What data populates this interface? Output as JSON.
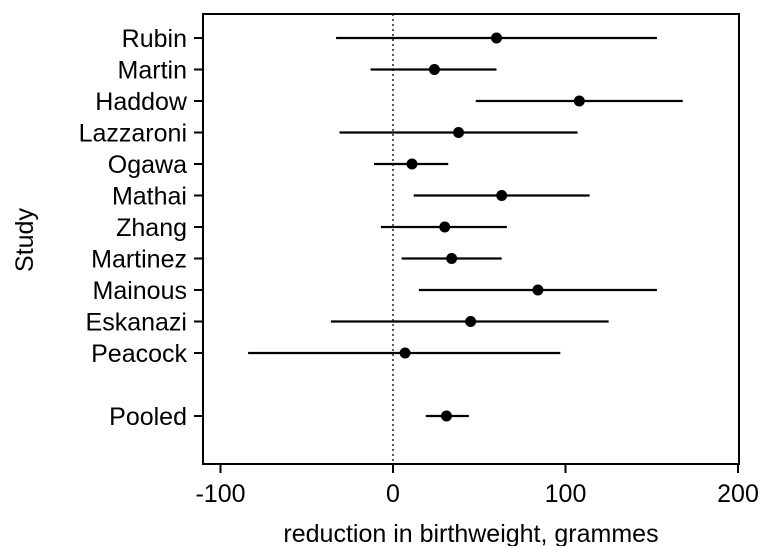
{
  "chart_data": {
    "type": "scatter",
    "subtype": "forest-plot",
    "title": "",
    "xlabel": "reduction in birthweight, grammes",
    "ylabel": "Study",
    "xlim": [
      -110,
      200
    ],
    "xticks": [
      -100,
      0,
      100,
      200
    ],
    "xtick_labels": [
      "-100",
      "0",
      "100",
      "200"
    ],
    "reference_line": {
      "x": 0,
      "style": "dotted"
    },
    "grid": false,
    "legend": "none",
    "studies": [
      {
        "label": "Rubin",
        "estimate": 60,
        "lower": -33,
        "upper": 153
      },
      {
        "label": "Martin",
        "estimate": 24,
        "lower": -13,
        "upper": 60
      },
      {
        "label": "Haddow",
        "estimate": 108,
        "lower": 48,
        "upper": 168
      },
      {
        "label": "Lazzaroni",
        "estimate": 38,
        "lower": -31,
        "upper": 107
      },
      {
        "label": "Ogawa",
        "estimate": 11,
        "lower": -11,
        "upper": 32
      },
      {
        "label": "Mathai",
        "estimate": 63,
        "lower": 12,
        "upper": 114
      },
      {
        "label": "Zhang",
        "estimate": 30,
        "lower": -7,
        "upper": 66
      },
      {
        "label": "Martinez",
        "estimate": 34,
        "lower": 5,
        "upper": 63
      },
      {
        "label": "Mainous",
        "estimate": 84,
        "lower": 15,
        "upper": 153
      },
      {
        "label": "Eskanazi",
        "estimate": 45,
        "lower": -36,
        "upper": 125
      },
      {
        "label": "Peacock",
        "estimate": 7,
        "lower": -84,
        "upper": 97
      }
    ],
    "pooled": {
      "label": "Pooled",
      "estimate": 31,
      "lower": 19,
      "upper": 44
    }
  }
}
